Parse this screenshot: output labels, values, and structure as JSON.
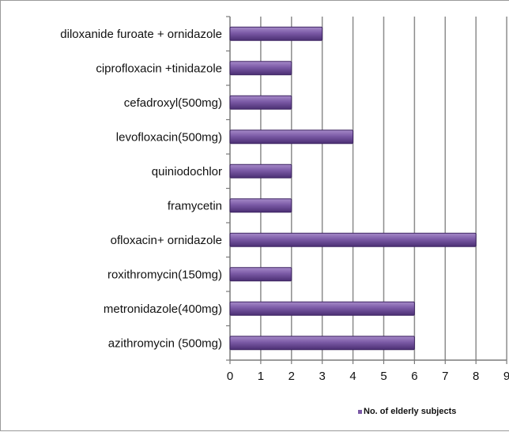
{
  "chart_data": {
    "type": "bar",
    "orientation": "horizontal",
    "categories": [
      "azithromycin (500mg)",
      "metronidazole(400mg)",
      "roxithromycin(150mg)",
      "ofloxacin+ ornidazole",
      "framycetin",
      "quiniodochlor",
      "levofloxacin(500mg)",
      "cefadroxyl(500mg)",
      "ciprofloxacin +tinidazole",
      "diloxanide furoate + ornidazole"
    ],
    "series": [
      {
        "name": "No. of elderly subjects",
        "values": [
          6,
          6,
          2,
          8,
          2,
          2,
          4,
          2,
          2,
          3
        ],
        "color": "#7b5aa6"
      }
    ],
    "xlim": [
      0,
      9
    ],
    "xticks": [
      "0",
      "1",
      "2",
      "3",
      "4",
      "5",
      "6",
      "7",
      "8",
      "9"
    ],
    "grid": "vertical",
    "legend_position": "bottom-right"
  }
}
